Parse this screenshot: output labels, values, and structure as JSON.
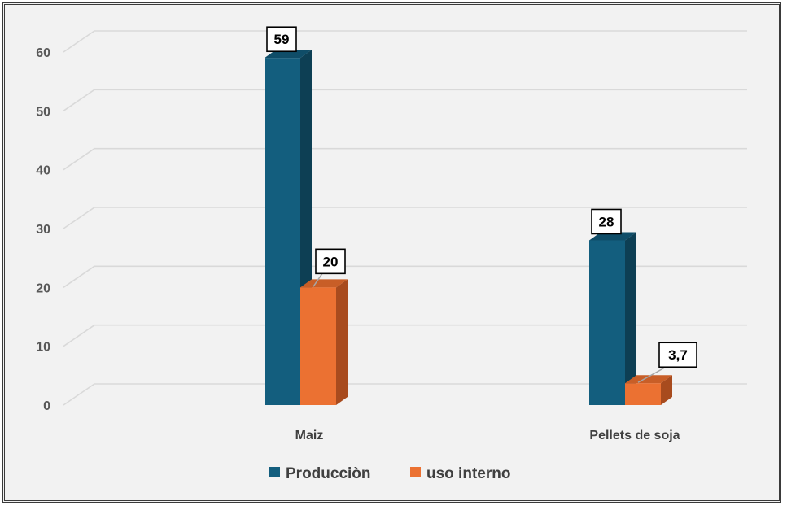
{
  "chart_data": {
    "type": "bar",
    "categories": [
      "Maiz",
      "Pellets de soja"
    ],
    "series": [
      {
        "name": "Producciòn",
        "values": [
          59,
          28
        ],
        "labels": [
          "59",
          "28"
        ],
        "color": "#135e7e",
        "side_color": "#0d3f54",
        "top_color": "#0f4d68"
      },
      {
        "name": "uso interno",
        "values": [
          20,
          3.7
        ],
        "labels": [
          "20",
          "3,7"
        ],
        "color": "#eb7132",
        "side_color": "#a84b1e",
        "top_color": "#c85e27"
      }
    ],
    "yticks": [
      "0",
      "10",
      "20",
      "30",
      "40",
      "50",
      "60"
    ],
    "ylim": [
      0,
      60
    ],
    "grid": true,
    "legend": "bottom-center",
    "title": "",
    "xlabel": "",
    "ylabel": ""
  }
}
